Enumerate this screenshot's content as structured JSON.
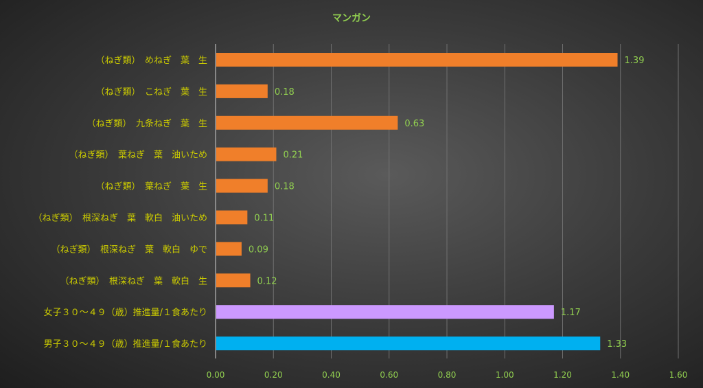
{
  "chart_data": {
    "type": "bar",
    "orientation": "horizontal",
    "title": "マンガン",
    "categories": [
      "（ねぎ類）　めねぎ　葉　生",
      "（ねぎ類）　こねぎ　葉　生",
      "（ねぎ類）　九条ねぎ　葉　生",
      "（ねぎ類）　葉ねぎ　葉　油いため",
      "（ねぎ類）　葉ねぎ　葉　生",
      "（ねぎ類）　根深ねぎ　葉　軟白　油いため",
      "（ねぎ類）　根深ねぎ　葉　軟白　ゆで",
      "（ねぎ類）　根深ねぎ　葉　軟白　生",
      "女子３０～４９（歳）推進量/１食あたり",
      "男子３０～４９（歳）推進量/１食あたり"
    ],
    "values": [
      1.39,
      0.18,
      0.63,
      0.21,
      0.18,
      0.11,
      0.09,
      0.12,
      1.17,
      1.33
    ],
    "value_labels": [
      "1.39",
      "0.18",
      "0.63",
      "0.21",
      "0.18",
      "0.11",
      "0.09",
      "0.12",
      "1.17",
      "1.33"
    ],
    "bar_colors": [
      "#f07f2a",
      "#f07f2a",
      "#f07f2a",
      "#f07f2a",
      "#f07f2a",
      "#f07f2a",
      "#f07f2a",
      "#f07f2a",
      "#cc99ff",
      "#00b0f0"
    ],
    "xlim": [
      0,
      1.6
    ],
    "xticks": [
      "0.00",
      "0.20",
      "0.40",
      "0.60",
      "0.80",
      "1.00",
      "1.20",
      "1.40",
      "1.60"
    ],
    "grid": true,
    "xlabel": "",
    "ylabel": ""
  }
}
